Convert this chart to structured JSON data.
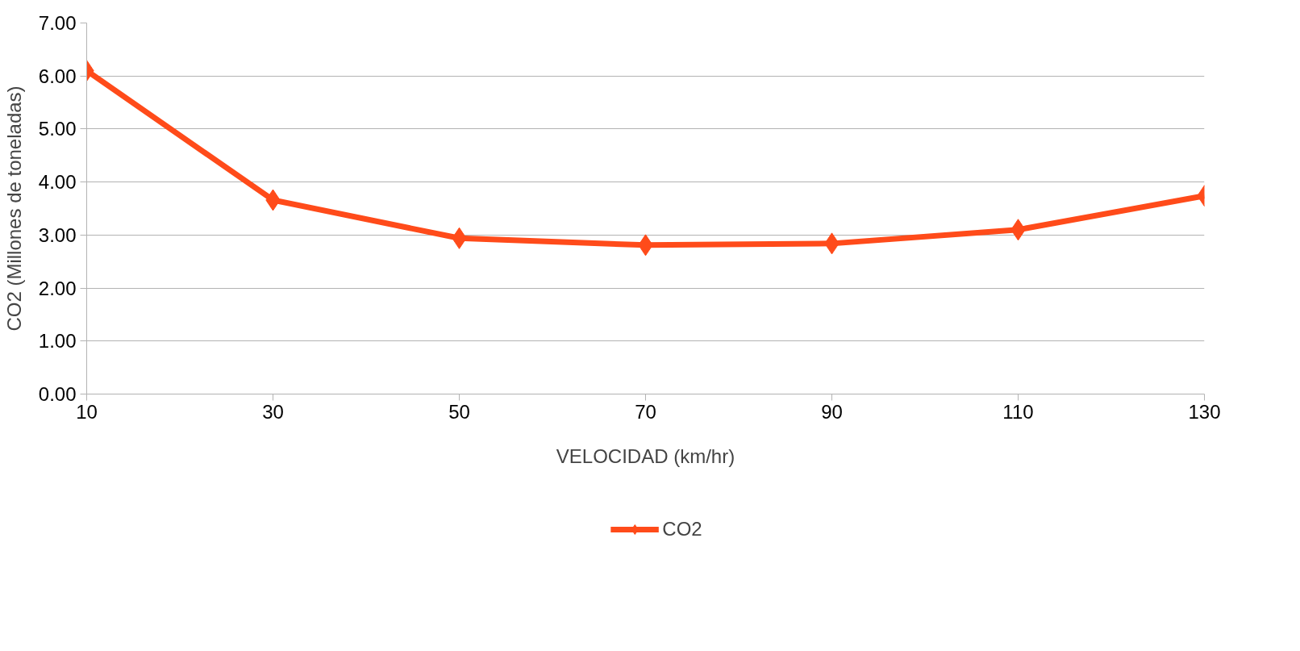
{
  "chart_data": {
    "type": "line",
    "xlabel": "VELOCIDAD (km/hr)",
    "ylabel": "CO2 (Millones de toneladas)",
    "x": [
      10,
      30,
      50,
      70,
      90,
      110,
      130
    ],
    "series": [
      {
        "name": "CO2",
        "color": "#ff4b1a",
        "values": [
          6.1,
          3.66,
          2.94,
          2.81,
          2.84,
          3.1,
          3.74
        ]
      }
    ],
    "xlim": [
      10,
      130
    ],
    "xticks": [
      10,
      30,
      50,
      70,
      90,
      110,
      130
    ],
    "ylim": [
      0,
      7
    ],
    "yticks": [
      {
        "value": 0,
        "label": "0.00"
      },
      {
        "value": 1,
        "label": "1.00"
      },
      {
        "value": 2,
        "label": "2.00"
      },
      {
        "value": 3,
        "label": "3.00"
      },
      {
        "value": 4,
        "label": "4.00"
      },
      {
        "value": 5,
        "label": "5.00"
      },
      {
        "value": 6,
        "label": "6.00"
      },
      {
        "value": 7,
        "label": "7.00"
      }
    ],
    "grid": "y",
    "legend": "bottom",
    "marker": "diamond",
    "line_style": "solid"
  }
}
